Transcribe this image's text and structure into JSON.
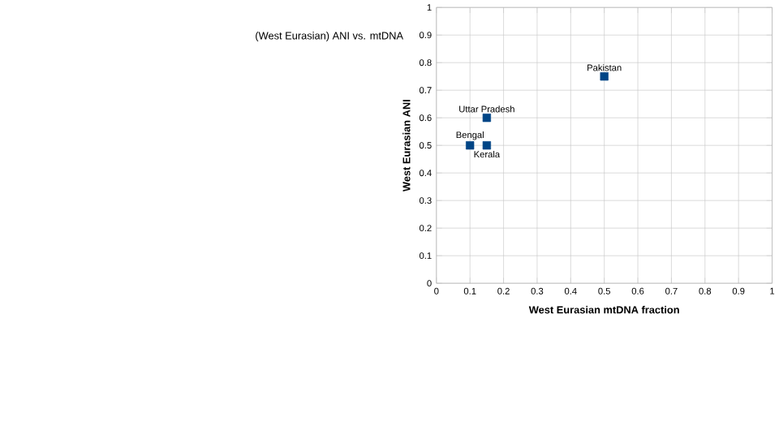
{
  "chart_data": {
    "type": "scatter",
    "title": "(West Eurasian) ANI vs. mtDNA",
    "xlabel": "West Eurasian mtDNA fraction",
    "ylabel": "West Eurasian ANI",
    "x": [
      0.5,
      0.15,
      0.1,
      0.15
    ],
    "values": [
      0.75,
      0.6,
      0.5,
      0.5
    ],
    "color": "#004586",
    "marker": "square",
    "grid": true,
    "xlim": [
      0,
      1
    ],
    "ylim": [
      0,
      1
    ],
    "xticks": [
      0,
      0.1,
      0.2,
      0.3,
      0.4,
      0.5,
      0.6,
      0.7,
      0.8,
      0.9,
      1
    ],
    "yticks": [
      0,
      0.1,
      0.2,
      0.3,
      0.4,
      0.5,
      0.6,
      0.7,
      0.8,
      0.9,
      1
    ],
    "annotations": [
      {
        "text": "Pakistan",
        "x": 0.5,
        "y": 0.75
      },
      {
        "text": "Uttar Pradesh",
        "x": 0.15,
        "y": 0.6
      },
      {
        "text": "Bengal",
        "x": 0.1,
        "y": 0.5
      },
      {
        "text": "Kerala",
        "x": 0.15,
        "y": 0.5
      }
    ]
  }
}
